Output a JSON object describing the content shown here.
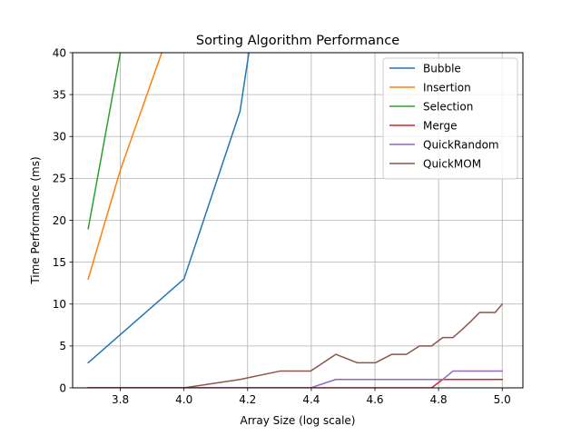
{
  "chart_data": {
    "type": "line",
    "title": "Sorting Algorithm Performance",
    "xlabel": "Array Size (log scale)",
    "ylabel": "Time Performance (ms)",
    "xlim": [
      3.65,
      5.065
    ],
    "ylim": [
      0,
      40
    ],
    "xticks": [
      3.8,
      4.0,
      4.2,
      4.4,
      4.6,
      4.8,
      5.0
    ],
    "xtick_labels": [
      "3.8",
      "4.0",
      "4.2",
      "4.4",
      "4.6",
      "4.8",
      "5.0"
    ],
    "yticks": [
      0,
      5,
      10,
      15,
      20,
      25,
      30,
      35,
      40
    ],
    "ytick_labels": [
      "0",
      "5",
      "10",
      "15",
      "20",
      "25",
      "30",
      "35",
      "40"
    ],
    "grid": true,
    "legend_position": "top-right",
    "series": [
      {
        "name": "Bubble",
        "color": "#1f77b4",
        "x": [
          3.699,
          4.0,
          4.176,
          4.204,
          4.301
        ],
        "y": [
          3,
          13,
          33,
          40,
          60
        ]
      },
      {
        "name": "Insertion",
        "color": "#ff7f0e",
        "x": [
          3.699,
          3.8,
          3.93,
          4.0
        ],
        "y": [
          13,
          26,
          40,
          48
        ]
      },
      {
        "name": "Selection",
        "color": "#2ca02c",
        "x": [
          3.699,
          3.8,
          3.9
        ],
        "y": [
          19,
          40,
          60
        ]
      },
      {
        "name": "Merge",
        "color": "#d62728",
        "x": [
          3.699,
          3.778,
          3.845,
          3.903,
          3.954,
          4.0,
          4.176,
          4.301,
          4.398,
          4.477,
          4.544,
          4.602,
          4.653,
          4.699,
          4.74,
          4.778,
          4.813,
          4.845,
          4.875,
          4.903,
          4.929,
          4.954,
          4.978,
          5.0
        ],
        "y": [
          0,
          0,
          0,
          0,
          0,
          0,
          0,
          0,
          0,
          0,
          0,
          0,
          0,
          0,
          0,
          0,
          1,
          1,
          1,
          1,
          1,
          1,
          1,
          1
        ]
      },
      {
        "name": "QuickRandom",
        "color": "#9467bd",
        "x": [
          3.699,
          3.778,
          3.845,
          3.903,
          3.954,
          4.0,
          4.176,
          4.301,
          4.398,
          4.477,
          4.544,
          4.602,
          4.653,
          4.699,
          4.74,
          4.778,
          4.813,
          4.845,
          4.875,
          4.903,
          4.929,
          4.954,
          4.978,
          5.0
        ],
        "y": [
          0,
          0,
          0,
          0,
          0,
          0,
          0,
          0,
          0,
          1,
          1,
          1,
          1,
          1,
          1,
          1,
          1,
          2,
          2,
          2,
          2,
          2,
          2,
          2
        ]
      },
      {
        "name": "QuickMOM",
        "color": "#8c564b",
        "x": [
          3.699,
          3.778,
          3.845,
          3.903,
          3.954,
          4.0,
          4.176,
          4.301,
          4.398,
          4.477,
          4.544,
          4.602,
          4.653,
          4.699,
          4.74,
          4.778,
          4.813,
          4.845,
          4.875,
          4.903,
          4.929,
          4.954,
          4.978,
          5.0
        ],
        "y": [
          0,
          0,
          0,
          0,
          0,
          0,
          1,
          2,
          2,
          4,
          3,
          3,
          4,
          4,
          5,
          5,
          6,
          6,
          7,
          8,
          9,
          9,
          9,
          10
        ]
      }
    ]
  }
}
